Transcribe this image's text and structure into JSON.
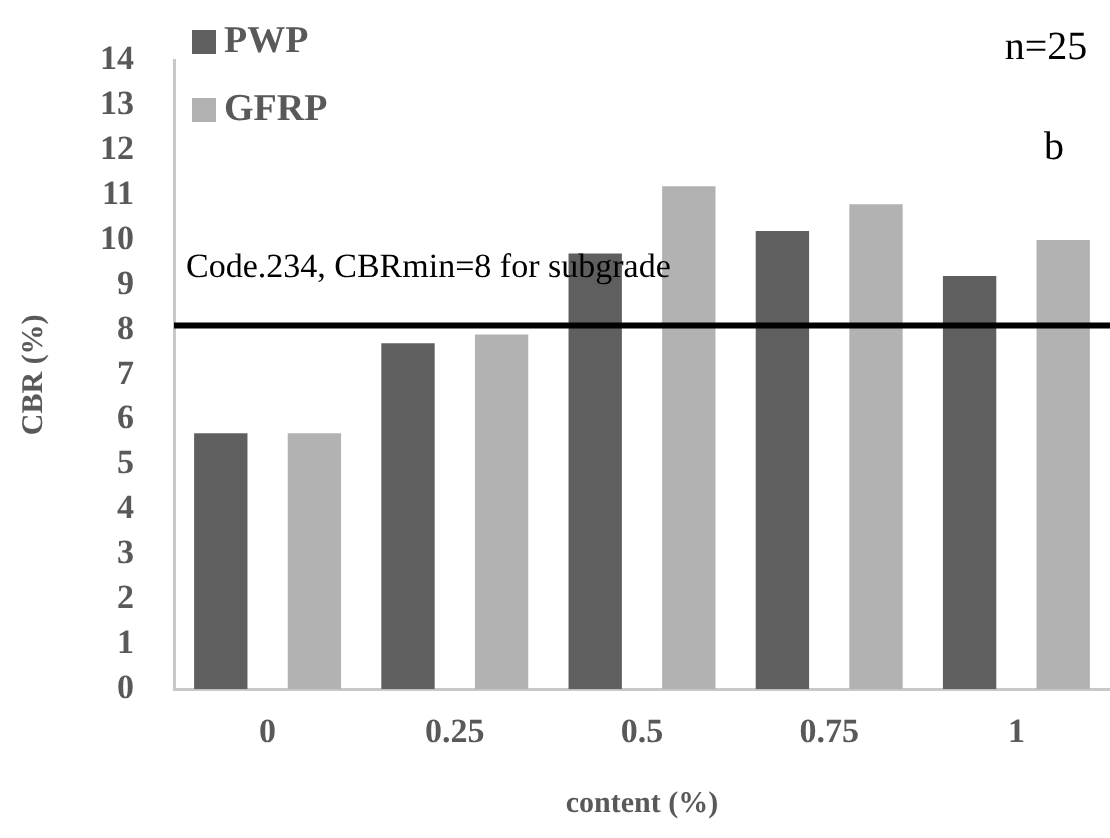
{
  "chart_data": {
    "type": "bar",
    "xlabel": "content (%)",
    "ylabel": "CBR (%)",
    "categories": [
      "0",
      "0.25",
      "0.5",
      "0.75",
      "1"
    ],
    "series": [
      {
        "name": "PWP",
        "color": "#5f5f5f",
        "values": [
          5.7,
          7.7,
          9.7,
          10.2,
          9.2
        ]
      },
      {
        "name": "GFRP",
        "color": "#b2b2b2",
        "values": [
          5.7,
          7.9,
          11.2,
          10.8,
          10.0
        ]
      }
    ],
    "ylim": [
      0,
      14
    ],
    "yticks": [
      0,
      1,
      2,
      3,
      4,
      5,
      6,
      7,
      8,
      9,
      10,
      11,
      12,
      13,
      14
    ],
    "grid": false,
    "legend": "top left",
    "ref_lines": [
      {
        "axis": "y",
        "value": 8.1,
        "label": "Code.234, CBRmin=8 for subgrade",
        "color": "#000000"
      }
    ],
    "annotations": [
      "n=25",
      "b"
    ]
  }
}
